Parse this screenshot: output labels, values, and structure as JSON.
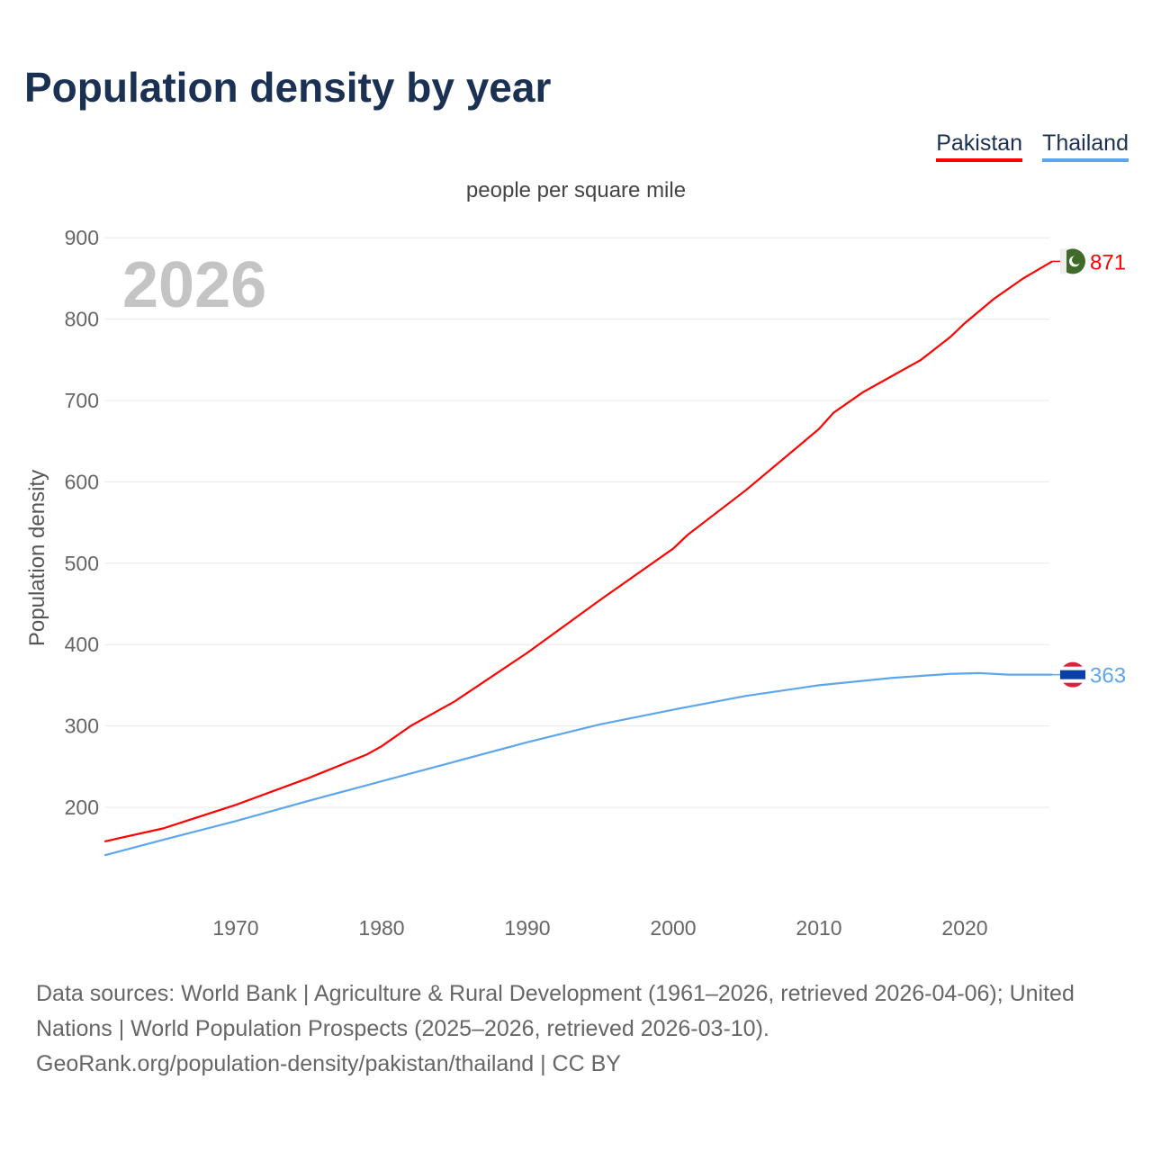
{
  "chart_data": {
    "type": "line",
    "title": "Population density by year",
    "subtitle": "people per square mile",
    "ylabel": "Population density",
    "xlabel": "",
    "ylim": [
      100,
      900
    ],
    "xlim": [
      1961,
      2026
    ],
    "yticks": [
      200,
      300,
      400,
      500,
      600,
      700,
      800,
      900
    ],
    "xticks": [
      1970,
      1980,
      1990,
      2000,
      2010,
      2020
    ],
    "year_label": "2026",
    "legend_position": "top-right",
    "series": [
      {
        "name": "Pakistan",
        "color": "#ff0000",
        "end_label": "871",
        "flag": "pakistan-flag",
        "x": [
          1961,
          1965,
          1970,
          1975,
          1979,
          1980,
          1982,
          1985,
          1990,
          1995,
          2000,
          2001,
          2005,
          2010,
          2011,
          2013,
          2015,
          2017,
          2019,
          2020,
          2022,
          2024,
          2026
        ],
        "y": [
          158,
          174,
          203,
          236,
          265,
          275,
          300,
          330,
          390,
          455,
          518,
          535,
          590,
          665,
          685,
          710,
          730,
          750,
          778,
          795,
          825,
          850,
          871
        ]
      },
      {
        "name": "Thailand",
        "color": "#5ea6ec",
        "end_label": "363",
        "flag": "thailand-flag",
        "x": [
          1961,
          1965,
          1970,
          1975,
          1980,
          1985,
          1990,
          1995,
          2000,
          2005,
          2010,
          2015,
          2019,
          2021,
          2023,
          2026
        ],
        "y": [
          141,
          160,
          183,
          208,
          232,
          256,
          280,
          302,
          320,
          337,
          350,
          359,
          364,
          365,
          363,
          363
        ]
      }
    ]
  },
  "source": {
    "line1": "Data sources: World Bank | Agriculture & Rural Development (1961–2026, retrieved 2026-04-06); United Nations | World Population Prospects (2025–2026, retrieved 2026-03-10).",
    "line2": "GeoRank.org/population-density/pakistan/thailand | CC BY"
  }
}
